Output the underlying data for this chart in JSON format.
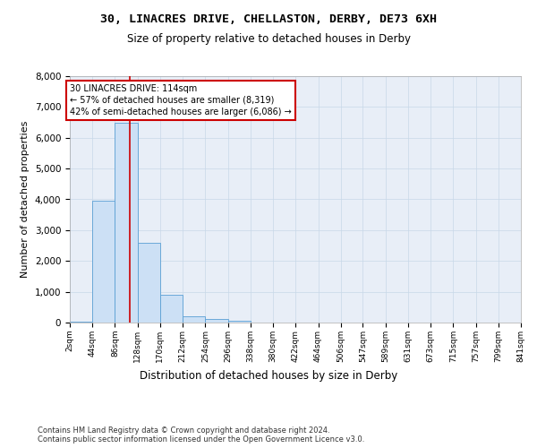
{
  "title_line1": "30, LINACRES DRIVE, CHELLASTON, DERBY, DE73 6XH",
  "title_line2": "Size of property relative to detached houses in Derby",
  "xlabel": "Distribution of detached houses by size in Derby",
  "ylabel": "Number of detached properties",
  "bar_color": "#cce0f5",
  "bar_edge_color": "#5a9fd4",
  "grid_color": "#c8d8e8",
  "background_color": "#e8eef7",
  "property_line_color": "#cc0000",
  "property_size": 114,
  "annotation_text": "30 LINACRES DRIVE: 114sqm\n← 57% of detached houses are smaller (8,319)\n42% of semi-detached houses are larger (6,086) →",
  "annotation_box_color": "#ffffff",
  "annotation_box_edge": "#cc0000",
  "footnote": "Contains HM Land Registry data © Crown copyright and database right 2024.\nContains public sector information licensed under the Open Government Licence v3.0.",
  "bin_edges": [
    2,
    44,
    86,
    128,
    170,
    212,
    254,
    296,
    338,
    380,
    422,
    464,
    506,
    547,
    589,
    631,
    673,
    715,
    757,
    799,
    841
  ],
  "bar_values": [
    30,
    3950,
    6500,
    2600,
    900,
    200,
    120,
    70,
    0,
    0,
    0,
    0,
    0,
    0,
    0,
    0,
    0,
    0,
    0,
    0
  ],
  "ylim": [
    0,
    8000
  ],
  "yticks": [
    0,
    1000,
    2000,
    3000,
    4000,
    5000,
    6000,
    7000,
    8000
  ]
}
